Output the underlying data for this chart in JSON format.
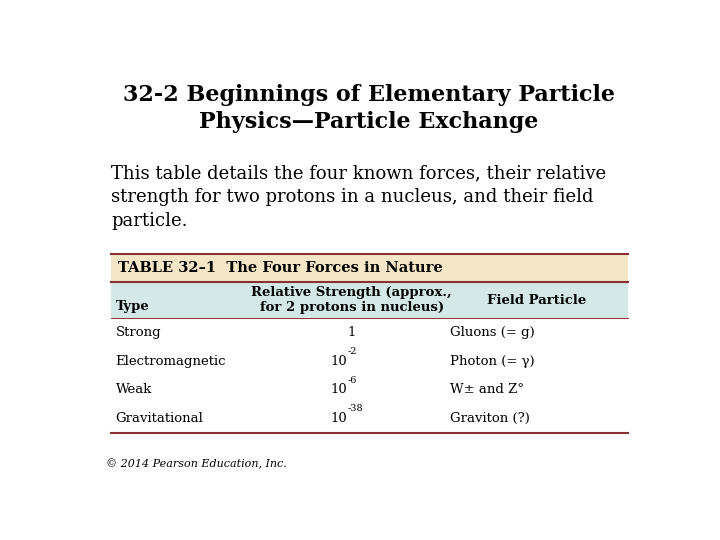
{
  "title": "32-2 Beginnings of Elementary Particle\nPhysics—Particle Exchange",
  "subtitle": "This table details the four known forces, their relative\nstrength for two protons in a nucleus, and their field\nparticle.",
  "table_title": "TABLE 32–1  The Four Forces in Nature",
  "col_headers": [
    "Type",
    "Relative Strength (approx.,\nfor 2 protons in nucleus)",
    "Field Particle"
  ],
  "rows": [
    [
      "Strong",
      "Gluons (= g)"
    ],
    [
      "Electromagnetic",
      "Photon (= γ)"
    ],
    [
      "Weak",
      "W± and Z°"
    ],
    [
      "Gravitational",
      "Graviton (?)"
    ]
  ],
  "strengths": [
    "1",
    "-2",
    "-6",
    "-38"
  ],
  "footer": "© 2014 Pearson Education, Inc.",
  "bg_color": "#ffffff",
  "table_header_bg": "#f5e6c8",
  "table_col_header_bg": "#d4e8e8",
  "table_border_color": "#8b3030",
  "title_fontsize": 16,
  "subtitle_fontsize": 13,
  "table_title_fontsize": 10.5,
  "col_header_fontsize": 9.5,
  "row_fontsize": 9.5,
  "footer_fontsize": 8
}
